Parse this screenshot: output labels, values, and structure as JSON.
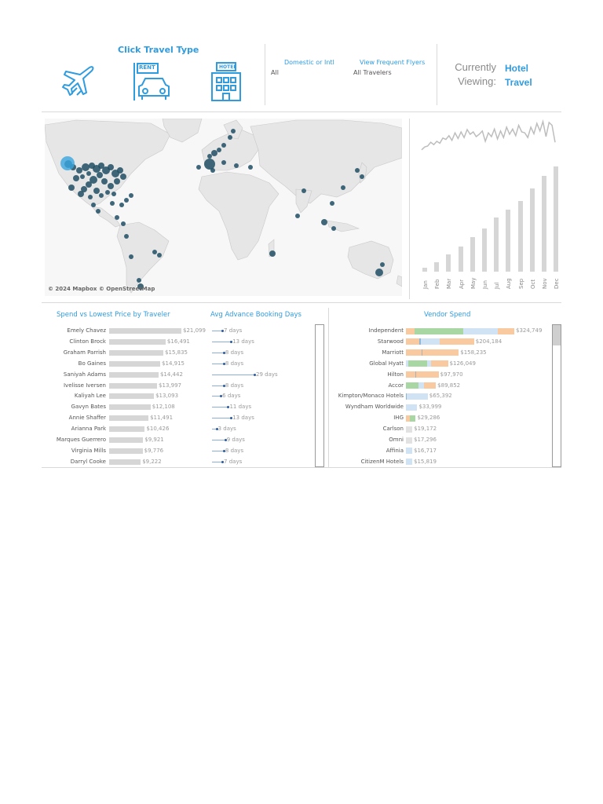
{
  "header": {
    "click_travel_type": "Click Travel Type",
    "icons": [
      "airplane-icon",
      "rent-car-icon",
      "hotel-icon"
    ],
    "rent_sign": "RENT",
    "hotel_sign": "HOTEL",
    "filters": [
      {
        "label": "Domestic or Intl",
        "value": "All"
      },
      {
        "label": "View Frequent Flyers",
        "value": "All Travelers"
      }
    ],
    "currently_label": "Currently",
    "viewing_label": "Viewing:",
    "current_type": "Hotel",
    "current_mode": "Travel"
  },
  "map": {
    "attribution": "© 2024 Mapbox © OpenStreetMap"
  },
  "colors": {
    "accent": "#2f9ce0",
    "bar": "#d6d6d6",
    "dot": "#2b5a9a",
    "green": "#a9d7a3",
    "orange": "#f9c9a0",
    "lightblue": "#cfe3f4"
  },
  "chart_data": [
    {
      "type": "line",
      "title": "",
      "values": [
        22,
        28,
        30,
        38,
        33,
        40,
        36,
        47,
        44,
        52,
        42,
        58,
        46,
        60,
        48,
        65,
        55,
        60,
        50,
        55,
        62,
        40,
        58,
        50,
        66,
        45,
        62,
        48,
        70,
        55,
        66,
        52,
        74,
        60,
        58,
        48,
        70,
        56,
        78,
        62,
        82,
        50,
        80,
        74,
        38
      ]
    },
    {
      "type": "bar",
      "title": "",
      "categories": [
        "Jan",
        "Feb",
        "Mar",
        "Apr",
        "May",
        "Jun",
        "Jul",
        "Aug",
        "Sep",
        "Oct",
        "Nov",
        "Dec"
      ],
      "values": [
        4,
        10,
        18,
        26,
        35,
        44,
        55,
        63,
        72,
        85,
        98,
        107
      ]
    },
    {
      "type": "bar",
      "title": "Spend vs Lowest Price by Traveler",
      "categories": [
        "Emely Chavez",
        "Clinton Brock",
        "Graham Parrish",
        "Bo Gaines",
        "Saniyah Adams",
        "Ivelisse Iversen",
        "Kaliyah Lee",
        "Gavyn Bates",
        "Annie Shaffer",
        "Arianna Park",
        "Marques Guerrero",
        "Virginia Mills",
        "Darryl Cooke"
      ],
      "values": [
        21099,
        16491,
        15835,
        14915,
        14442,
        13997,
        13093,
        12108,
        11491,
        10426,
        9921,
        9776,
        9222
      ],
      "labels": [
        "$21,099",
        "$16,491",
        "$15,835",
        "$14,915",
        "$14,442",
        "$13,997",
        "$13,093",
        "$12,108",
        "$11,491",
        "$10,426",
        "$9,921",
        "$9,776",
        "$9,222"
      ]
    },
    {
      "type": "bar",
      "title": "Avg Advance Booking Days",
      "categories": [
        "Emely Chavez",
        "Clinton Brock",
        "Graham Parrish",
        "Bo Gaines",
        "Saniyah Adams",
        "Ivelisse Iversen",
        "Kaliyah Lee",
        "Gavyn Bates",
        "Annie Shaffer",
        "Arianna Park",
        "Marques Guerrero",
        "Virginia Mills",
        "Darryl Cooke"
      ],
      "values": [
        7,
        13,
        8,
        8,
        29,
        8,
        6,
        11,
        13,
        3,
        9,
        8,
        7
      ],
      "labels": [
        "7 days",
        "13 days",
        "8 days",
        "8 days",
        "29 days",
        "8 days",
        "6 days",
        "11 days",
        "13 days",
        "3 days",
        "9 days",
        "8 days",
        "7 days"
      ]
    },
    {
      "type": "bar",
      "title": "Vendor Spend",
      "categories": [
        "Independent",
        "Starwood",
        "Marriott",
        "Global Hyatt",
        "Hilton",
        "Accor",
        "Kimpton/Monaco Hotels",
        "Wyndham Worldwide",
        "IHG",
        "Carlson",
        "Omni",
        "Affinia",
        "CitizenM Hotels"
      ],
      "values": [
        324749,
        204184,
        158235,
        126049,
        97970,
        89852,
        65392,
        33999,
        29286,
        19172,
        17296,
        16717,
        15819
      ],
      "labels": [
        "$324,749",
        "$204,184",
        "$158,235",
        "$126,049",
        "$97,970",
        "$89,852",
        "$65,392",
        "$33,999",
        "$29,286",
        "$19,172",
        "$17,296",
        "$16,717",
        "$15,819"
      ]
    }
  ]
}
